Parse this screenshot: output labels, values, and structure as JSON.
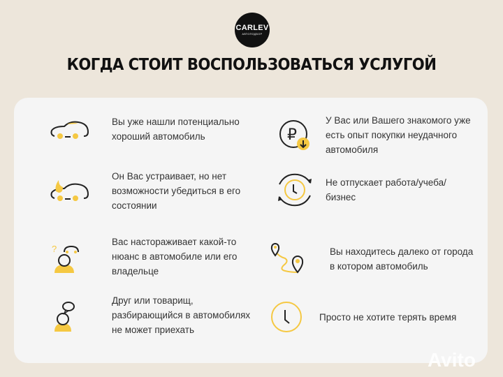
{
  "logo": {
    "brand": "CARLEV",
    "tagline": "АВТОПОДБОР"
  },
  "title": "КОГДА СТОИТ ВОСПОЛЬЗОВАТЬСЯ УСЛУГОЙ",
  "colors": {
    "accent": "#f5c842",
    "background": "#ede6db",
    "card": "#f5f5f5",
    "text": "#333333"
  },
  "items": [
    {
      "icon": "car-icon",
      "text": "Вы уже нашли потенциально\nхороший автомобиль"
    },
    {
      "icon": "ruble-down-icon",
      "text": "У Вас или Вашего знакомого уже\nесть опыт покупки неудачного\nавтомобиля"
    },
    {
      "icon": "car-fire-icon",
      "text": "Он Вас устраивает, но нет\nвозможности убедиться в его\nсостоянии"
    },
    {
      "icon": "clock-cycle-icon",
      "text": "Не отпускает работа/учеба/\nбизнес"
    },
    {
      "icon": "person-question-car-icon",
      "text": "Вас настораживает какой-то\nнюанс в автомобиле или его\nвладельце"
    },
    {
      "icon": "route-pins-icon",
      "text": "Вы находитесь далеко от города\nв котором автомобиль"
    },
    {
      "icon": "person-speech-icon",
      "text": "Друг или товарищ,\nразбирающийся в автомобилях\nне может приехать"
    },
    {
      "icon": "clock-icon",
      "text": "Просто не хотите терять время"
    }
  ],
  "watermark": "Avito"
}
